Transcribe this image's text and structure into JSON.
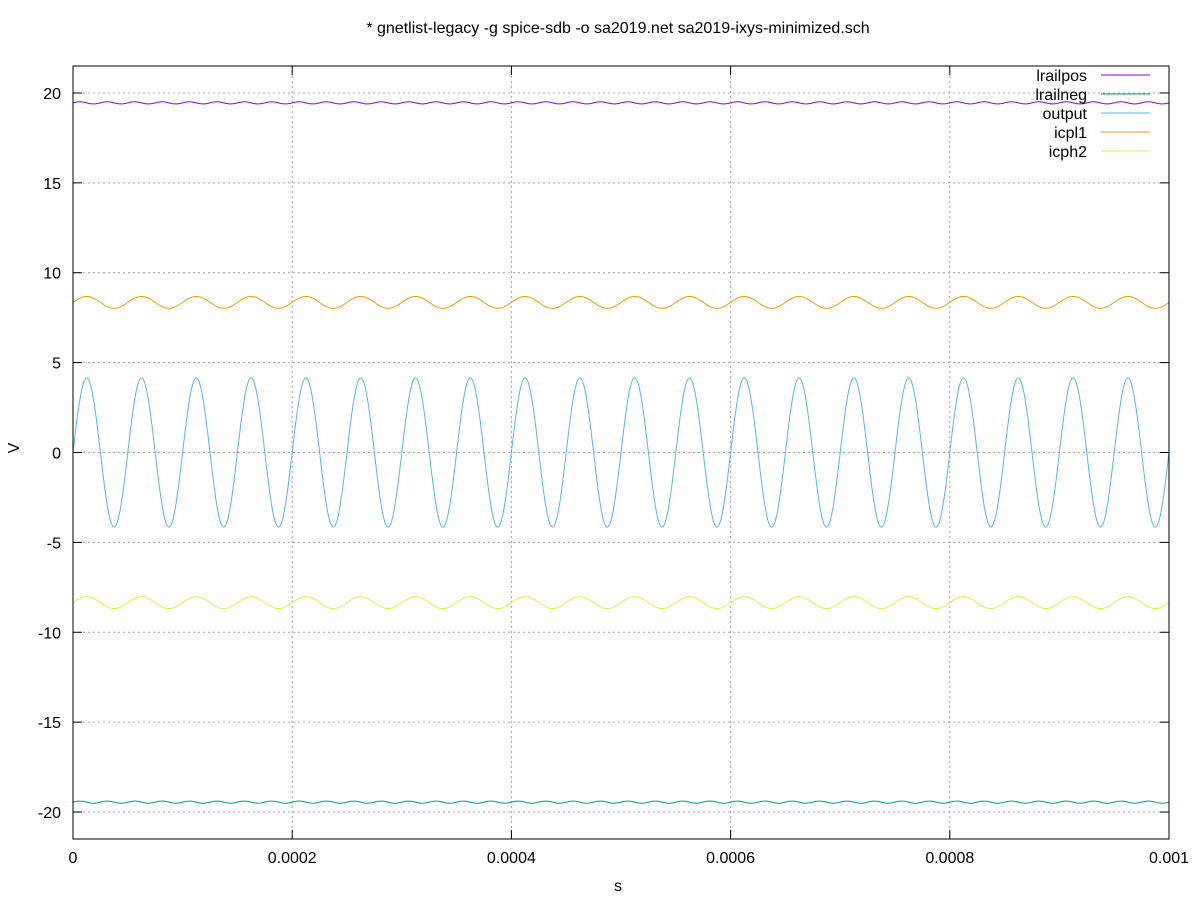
{
  "chart_data": {
    "type": "line",
    "title": "* gnetlist-legacy -g spice-sdb -o sa2019.net sa2019-ixys-minimized.sch",
    "xlabel": "s",
    "ylabel": "V",
    "xlim": [
      0,
      0.001
    ],
    "ylim": [
      -21.5,
      21.5
    ],
    "x_ticks": [
      {
        "value": 0,
        "label": "0"
      },
      {
        "value": 0.0002,
        "label": "0.0002"
      },
      {
        "value": 0.0004,
        "label": "0.0004"
      },
      {
        "value": 0.0006,
        "label": "0.0006"
      },
      {
        "value": 0.0008,
        "label": "0.0008"
      },
      {
        "value": 0.001,
        "label": "0.001"
      }
    ],
    "y_ticks": [
      {
        "value": 20,
        "label": "20"
      },
      {
        "value": 15,
        "label": "15"
      },
      {
        "value": 10,
        "label": "10"
      },
      {
        "value": 5,
        "label": "5"
      },
      {
        "value": 0,
        "label": "0"
      },
      {
        "value": -5,
        "label": "-5"
      },
      {
        "value": -10,
        "label": "-10"
      },
      {
        "value": -15,
        "label": "-15"
      },
      {
        "value": -20,
        "label": "-20"
      }
    ],
    "grid": true,
    "legend_position": "top-right",
    "signal_frequency_hz": 20000,
    "series": [
      {
        "name": "lrailpos",
        "color": "#9400d3",
        "offset": 19.45,
        "amplitude": 0.06,
        "phase": "sin",
        "harmonic": 2
      },
      {
        "name": "lrailneg",
        "color": "#009e73",
        "offset": -19.45,
        "amplitude": 0.06,
        "phase": "sin",
        "harmonic": 2
      },
      {
        "name": "output",
        "color": "#56b4e9",
        "offset": 0,
        "amplitude": 4.15,
        "phase": "sin",
        "harmonic": 1
      },
      {
        "name": "icpl1",
        "color": "#e69f00",
        "offset": 8.35,
        "amplitude": 0.33,
        "phase": "sin",
        "harmonic": 1
      },
      {
        "name": "icph2",
        "color": "#f0e442",
        "offset": -8.35,
        "amplitude": 0.33,
        "phase": "sin",
        "harmonic": 1
      }
    ]
  }
}
